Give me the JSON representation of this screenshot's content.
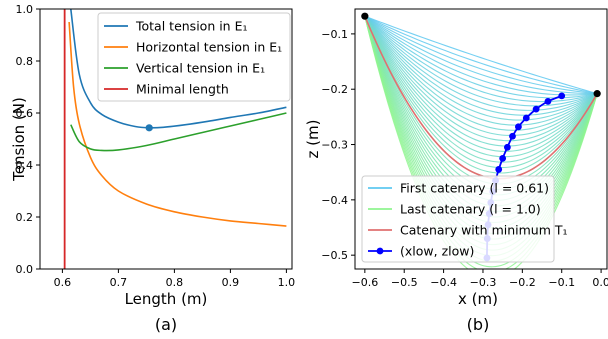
{
  "chart_data": [
    {
      "type": "line",
      "panel_label": "(a)",
      "xlabel": "Length (m)",
      "ylabel": "Tension (N)",
      "xlim": [
        0.56,
        1.01
      ],
      "ylim": [
        0.0,
        1.0
      ],
      "xticks": [
        "0.6",
        "0.7",
        "0.8",
        "0.9",
        "1.0"
      ],
      "yticks": [
        "0.0",
        "0.2",
        "0.4",
        "0.6",
        "0.8",
        "1.0"
      ],
      "grid": false,
      "legend": "top-right",
      "series": [
        {
          "name": "Total tension in E₁",
          "color": "#1f77b4",
          "x": [
            0.615,
            0.63,
            0.65,
            0.67,
            0.7,
            0.73,
            0.755,
            0.78,
            0.82,
            0.86,
            0.9,
            0.95,
            1.0
          ],
          "y": [
            1.0,
            0.75,
            0.64,
            0.595,
            0.565,
            0.548,
            0.543,
            0.545,
            0.555,
            0.568,
            0.583,
            0.6,
            0.622
          ]
        },
        {
          "name": "Horizontal tension in E₁",
          "color": "#ff7f0e",
          "x": [
            0.612,
            0.62,
            0.63,
            0.65,
            0.67,
            0.7,
            0.75,
            0.8,
            0.85,
            0.9,
            0.95,
            1.0
          ],
          "y": [
            0.95,
            0.7,
            0.56,
            0.43,
            0.36,
            0.3,
            0.25,
            0.22,
            0.2,
            0.185,
            0.175,
            0.165
          ]
        },
        {
          "name": "Vertical tension in E₁",
          "color": "#2ca02c",
          "x": [
            0.615,
            0.63,
            0.65,
            0.67,
            0.7,
            0.75,
            0.8,
            0.85,
            0.9,
            0.95,
            1.0
          ],
          "y": [
            0.555,
            0.49,
            0.462,
            0.456,
            0.458,
            0.475,
            0.5,
            0.525,
            0.55,
            0.575,
            0.6
          ]
        },
        {
          "name": "Minimal length",
          "color": "#d62728",
          "kind": "vline",
          "x": [
            0.604
          ]
        }
      ],
      "marker": {
        "x": 0.755,
        "y": 0.543,
        "color": "#1f77b4"
      }
    },
    {
      "type": "line",
      "panel_label": "(b)",
      "xlabel": "x (m)",
      "ylabel": "z (m)",
      "xlim": [
        -0.625,
        0.015
      ],
      "ylim": [
        -0.525,
        -0.055
      ],
      "xticks": [
        "−0.6",
        "−0.5",
        "−0.4",
        "−0.3",
        "−0.2",
        "−0.1",
        "0.0"
      ],
      "yticks": [
        "−0.5",
        "−0.4",
        "−0.3",
        "−0.2",
        "−0.1"
      ],
      "grid": false,
      "legend": "bottom-left",
      "endpoints": {
        "x": [
          -0.6,
          -0.01
        ],
        "y": [
          -0.068,
          -0.208
        ],
        "color": "#000000"
      },
      "catenaries": {
        "length_first": 0.61,
        "length_last": 1.0,
        "count": 40,
        "color_first": "#5ec8f0",
        "color_last": "#8ff58f",
        "sag_first": 0.005,
        "sag_last": 0.4
      },
      "series": [
        {
          "name": "First catenary (l = 0.61)",
          "color": "#5ec8f0",
          "legend_only": true
        },
        {
          "name": "Last catenary (l = 1.0)",
          "color": "#8ff58f",
          "legend_only": true
        },
        {
          "name": "Catenary with minimum T₁",
          "color": "#e07070",
          "sag": 0.218
        },
        {
          "name": "(xlow, zlow)",
          "color": "#0000ff",
          "x": [
            -0.1,
            -0.135,
            -0.165,
            -0.19,
            -0.21,
            -0.225,
            -0.238,
            -0.25,
            -0.26,
            -0.268,
            -0.275,
            -0.28,
            -0.284,
            -0.287,
            -0.289,
            -0.29
          ],
          "y": [
            -0.212,
            -0.222,
            -0.236,
            -0.252,
            -0.268,
            -0.285,
            -0.305,
            -0.325,
            -0.345,
            -0.365,
            -0.385,
            -0.405,
            -0.425,
            -0.445,
            -0.47,
            -0.505
          ]
        }
      ]
    }
  ]
}
